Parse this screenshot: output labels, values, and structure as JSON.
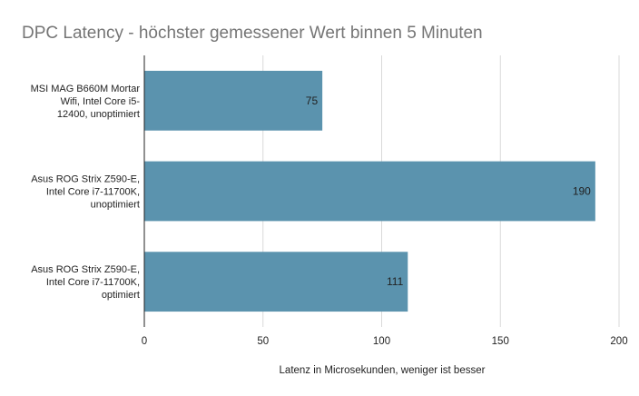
{
  "chart_data": {
    "type": "bar",
    "orientation": "horizontal",
    "title": "DPC Latency - höchster gemessener Wert binnen 5 Minuten",
    "xlabel": "Latenz in Microsekunden, weniger ist besser",
    "ylabel": "",
    "categories": [
      [
        "MSI MAG B660M Mortar",
        "Wifi, Intel Core i5-",
        "12400, unoptimiert"
      ],
      [
        "Asus ROG Strix Z590-E,",
        "Intel Core i7-11700K,",
        "unoptimiert"
      ],
      [
        "Asus ROG Strix Z590-E,",
        "Intel Core i7-11700K,",
        "optimiert"
      ]
    ],
    "values": [
      75,
      190,
      111
    ],
    "data_labels": [
      "75",
      "190",
      "111"
    ],
    "xlim": [
      0,
      200
    ],
    "xticks": [
      0,
      50,
      100,
      150,
      200
    ],
    "grid": true,
    "legend": "none",
    "bar_color": "#5b93ae"
  }
}
